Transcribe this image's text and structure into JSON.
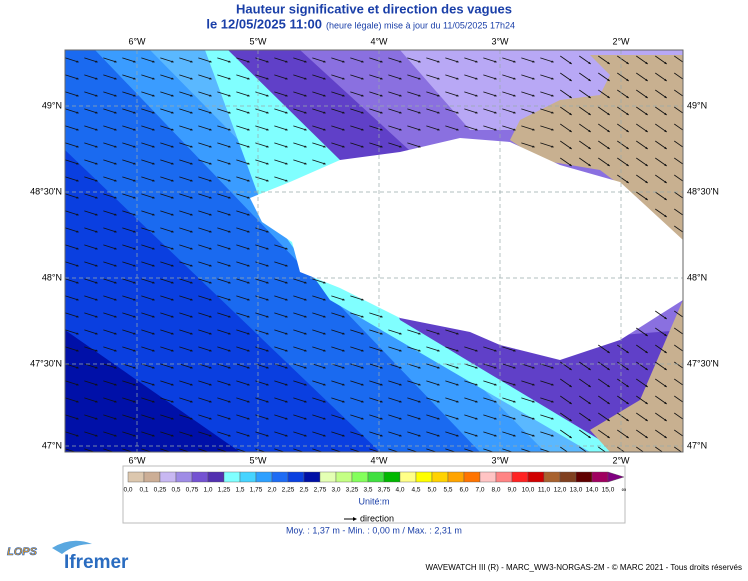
{
  "header": {
    "title": "Hauteur significative et direction des vagues",
    "date": "le 12/05/2025 11:00",
    "note": "(heure légale) mise à jour du 11/05/2025 17h24"
  },
  "map": {
    "lon_labels": [
      "6°W",
      "5°W",
      "4°W",
      "3°W",
      "2°W"
    ],
    "lat_labels": [
      "49°N",
      "48°30'N",
      "48°N",
      "47°30'N",
      "47°N"
    ]
  },
  "legend": {
    "labels": [
      "0,0",
      "0,1",
      "0,25",
      "0,5",
      "0,75",
      "1,0",
      "1,25",
      "1,5",
      "1,75",
      "2,0",
      "2,25",
      "2,5",
      "2,75",
      "3,0",
      "3,25",
      "3,5",
      "3,75",
      "4,0",
      "4,5",
      "5,0",
      "5,5",
      "6,0",
      "7,0",
      "8,0",
      "9,0",
      "10,0",
      "11,0",
      "12,0",
      "13,0",
      "14,0",
      "15,0",
      "∞"
    ],
    "colors": [
      "#dcc7ae",
      "#ccae96",
      "#c8b8f2",
      "#9f8ce6",
      "#7452d2",
      "#5230b0",
      "#80ffff",
      "#46d4ff",
      "#2ea0ff",
      "#1e6cf4",
      "#0a40e0",
      "#0010a6",
      "#e4ffb4",
      "#c4ff84",
      "#84ff5c",
      "#40e040",
      "#00b800",
      "#ffff88",
      "#ffff00",
      "#ffd200",
      "#ffa400",
      "#ff7400",
      "#ffc4c4",
      "#ff8484",
      "#ff2222",
      "#d00000",
      "#a8622e",
      "#804020",
      "#600000",
      "#a00060",
      "#800080"
    ],
    "unit": "Unité:m",
    "direction": "direction"
  },
  "stats": "Moy. : 1,37 m   -   Min. : 0,00 m / Max. : 2,31 m",
  "footer": {
    "credits": "WAVEWATCH III (R) - MARC_WW3-NORGAS-2M - © MARC 2021 - Tous droits réservés",
    "logos": [
      "LOPS",
      "Ifremer"
    ]
  }
}
